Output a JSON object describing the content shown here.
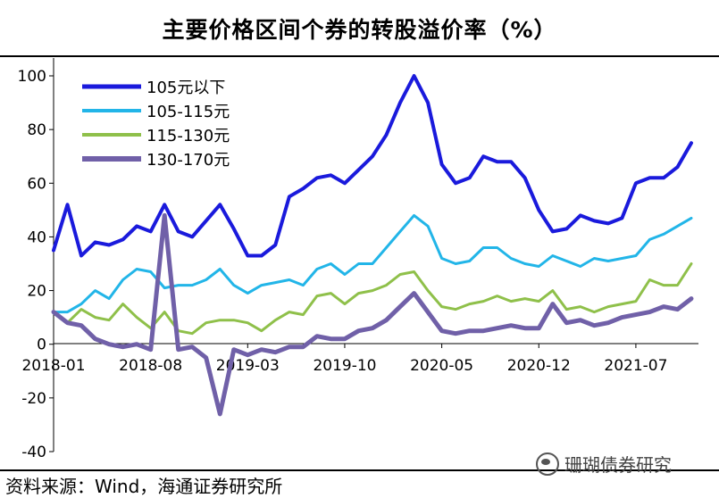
{
  "title": "主要价格区间个券的转股溢价率（%）",
  "source": "资料来源：Wind，海通证券研究所",
  "watermark": "珊瑚债券研究",
  "chart_data": {
    "type": "line",
    "title": "主要价格区间个券的转股溢价率（%）",
    "xlabel": "",
    "ylabel": "",
    "x_ticks": [
      "2018-01",
      "2018-08",
      "2019-03",
      "2019-10",
      "2020-05",
      "2020-12",
      "2021-07"
    ],
    "x_range": [
      "2018-01",
      "2021-11"
    ],
    "ylim": [
      -40,
      100
    ],
    "y_ticks": [
      -40,
      -20,
      0,
      20,
      40,
      60,
      80,
      100
    ],
    "grid": false,
    "legend_position": "top-left",
    "x": [
      "2018-01",
      "2018-02",
      "2018-03",
      "2018-04",
      "2018-05",
      "2018-06",
      "2018-07",
      "2018-08",
      "2018-09",
      "2018-10",
      "2018-11",
      "2018-12",
      "2019-01",
      "2019-02",
      "2019-03",
      "2019-04",
      "2019-05",
      "2019-06",
      "2019-07",
      "2019-08",
      "2019-09",
      "2019-10",
      "2019-11",
      "2019-12",
      "2020-01",
      "2020-02",
      "2020-03",
      "2020-04",
      "2020-05",
      "2020-06",
      "2020-07",
      "2020-08",
      "2020-09",
      "2020-10",
      "2020-11",
      "2020-12",
      "2021-01",
      "2021-02",
      "2021-03",
      "2021-04",
      "2021-05",
      "2021-06",
      "2021-07",
      "2021-08",
      "2021-09",
      "2021-10",
      "2021-11"
    ],
    "series": [
      {
        "name": "105元以下",
        "color": "#1a1adc",
        "stroke_width": 4,
        "values": [
          35,
          52,
          33,
          38,
          37,
          39,
          44,
          42,
          52,
          42,
          40,
          46,
          52,
          43,
          33,
          33,
          37,
          55,
          58,
          62,
          63,
          60,
          65,
          70,
          78,
          90,
          100,
          90,
          67,
          60,
          62,
          70,
          68,
          68,
          62,
          50,
          42,
          43,
          48,
          46,
          45,
          47,
          60,
          62,
          62,
          66,
          75
        ]
      },
      {
        "name": "105-115元",
        "color": "#22b5e8",
        "stroke_width": 3,
        "values": [
          12,
          12,
          15,
          20,
          17,
          24,
          28,
          27,
          21,
          22,
          22,
          24,
          28,
          22,
          19,
          22,
          23,
          24,
          22,
          28,
          30,
          26,
          30,
          30,
          36,
          42,
          48,
          44,
          32,
          30,
          31,
          36,
          36,
          32,
          30,
          29,
          33,
          31,
          29,
          32,
          31,
          32,
          33,
          39,
          41,
          44,
          47
        ]
      },
      {
        "name": "115-130元",
        "color": "#8fc04a",
        "stroke_width": 3,
        "values": [
          12,
          8,
          13,
          10,
          9,
          15,
          10,
          6,
          12,
          5,
          4,
          8,
          9,
          9,
          8,
          5,
          9,
          12,
          11,
          18,
          19,
          15,
          19,
          20,
          22,
          26,
          27,
          20,
          14,
          13,
          15,
          16,
          18,
          16,
          17,
          16,
          20,
          13,
          14,
          12,
          14,
          15,
          16,
          24,
          22,
          22,
          30
        ]
      },
      {
        "name": "130-170元",
        "color": "#7060a8",
        "stroke_width": 5,
        "values": [
          12,
          8,
          7,
          2,
          0,
          -1,
          0,
          -2,
          48,
          -2,
          -1,
          -5,
          -26,
          -2,
          -4,
          -2,
          -3,
          -1,
          -1,
          3,
          2,
          2,
          5,
          6,
          9,
          14,
          19,
          12,
          5,
          4,
          5,
          5,
          6,
          7,
          6,
          6,
          15,
          8,
          9,
          7,
          8,
          10,
          11,
          12,
          14,
          13,
          17
        ]
      }
    ]
  }
}
